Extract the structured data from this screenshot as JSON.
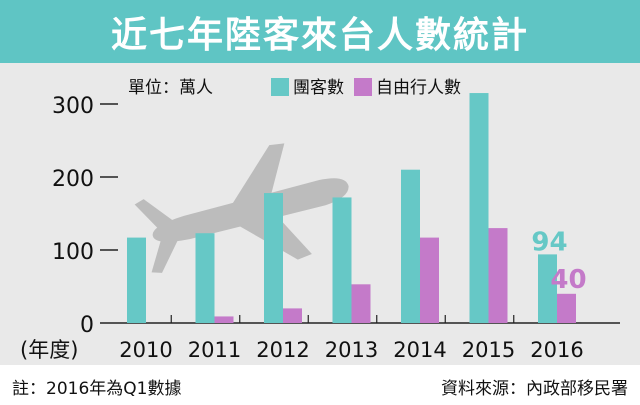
{
  "title": "近七年陸客來台人數統計",
  "footnote": "註：2016年為Q1數據",
  "source": "資料來源：內政部移民署",
  "colors": {
    "title_bg": "#5fc5c4",
    "series_group": "#66c8c6",
    "series_free": "#c47ac9",
    "panel_bg": "#e9e9e9"
  },
  "chart_data": {
    "type": "bar",
    "unit_label": "單位：萬人",
    "x_unit_label": "(年度)",
    "categories": [
      "2010",
      "2011",
      "2012",
      "2013",
      "2014",
      "2015",
      "2016"
    ],
    "series": [
      {
        "name": "團客數",
        "values": [
          117,
          123,
          178,
          172,
          210,
          315,
          94
        ]
      },
      {
        "name": "自由行人數",
        "values": [
          0,
          9,
          20,
          53,
          117,
          130,
          40
        ]
      }
    ],
    "data_labels": {
      "2016": [
        "94",
        "40"
      ]
    },
    "ylim": [
      0,
      320
    ],
    "yticks": [
      "0",
      "100",
      "200",
      "300"
    ],
    "legend_position": "top",
    "decoration": "airplane-silhouette"
  }
}
